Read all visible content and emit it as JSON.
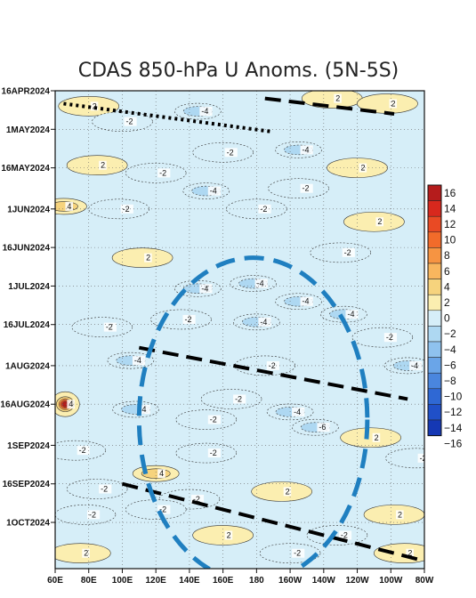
{
  "chart_data": {
    "type": "heatmap",
    "title": "CDAS 850-hPa U Anoms. (5N-5S)",
    "x_ticks": [
      "60E",
      "80E",
      "100E",
      "120E",
      "140E",
      "160E",
      "180",
      "160W",
      "140W",
      "120W",
      "100W",
      "80W"
    ],
    "x_range_lon": [
      60,
      280
    ],
    "y_ticks": [
      "16APR2024",
      "1MAY2024",
      "16MAY2024",
      "1JUN2024",
      "16JUN2024",
      "1JUL2024",
      "16JUL2024",
      "1AUG2024",
      "16AUG2024",
      "1SEP2024",
      "16SEP2024",
      "1OCT2024"
    ],
    "y_range": [
      "2024-04-16",
      "2024-10-19"
    ],
    "colorbar_levels": [
      16,
      14,
      12,
      10,
      8,
      6,
      4,
      2,
      0,
      -2,
      -4,
      -6,
      -8,
      -10,
      -12,
      -14,
      -16
    ],
    "colorbar_colors": [
      "#b51c1c",
      "#d8281d",
      "#e94a24",
      "#f26b2a",
      "#f69442",
      "#f8b65e",
      "#f6d37d",
      "#fbeeb0",
      "#ffffff",
      "#d6eef8",
      "#aed8f2",
      "#8fc2ee",
      "#6aa5e8",
      "#4a86de",
      "#2f68d4",
      "#2050c8",
      "#1538b4"
    ],
    "anomaly_features": [
      {
        "lon": 80,
        "date": "2024-04-22",
        "value": 2
      },
      {
        "lon": 100,
        "date": "2024-04-28",
        "value": -2
      },
      {
        "lon": 145,
        "date": "2024-04-24",
        "value": -4
      },
      {
        "lon": 225,
        "date": "2024-04-19",
        "value": 2
      },
      {
        "lon": 258,
        "date": "2024-04-21",
        "value": 2
      },
      {
        "lon": 205,
        "date": "2024-05-09",
        "value": -4
      },
      {
        "lon": 160,
        "date": "2024-05-10",
        "value": -2
      },
      {
        "lon": 85,
        "date": "2024-05-15",
        "value": 2
      },
      {
        "lon": 240,
        "date": "2024-05-16",
        "value": 2
      },
      {
        "lon": 120,
        "date": "2024-05-18",
        "value": -2
      },
      {
        "lon": 150,
        "date": "2024-05-25",
        "value": -4
      },
      {
        "lon": 205,
        "date": "2024-05-24",
        "value": -2
      },
      {
        "lon": 65,
        "date": "2024-05-31",
        "value": 4
      },
      {
        "lon": 98,
        "date": "2024-06-01",
        "value": -2
      },
      {
        "lon": 180,
        "date": "2024-06-01",
        "value": -2
      },
      {
        "lon": 250,
        "date": "2024-06-06",
        "value": 2
      },
      {
        "lon": 112,
        "date": "2024-06-20",
        "value": 2
      },
      {
        "lon": 230,
        "date": "2024-06-18",
        "value": -2
      },
      {
        "lon": 145,
        "date": "2024-07-02",
        "value": -4
      },
      {
        "lon": 178,
        "date": "2024-06-30",
        "value": -4
      },
      {
        "lon": 205,
        "date": "2024-07-07",
        "value": -4
      },
      {
        "lon": 232,
        "date": "2024-07-12",
        "value": -4
      },
      {
        "lon": 135,
        "date": "2024-07-14",
        "value": -2
      },
      {
        "lon": 180,
        "date": "2024-07-15",
        "value": -4
      },
      {
        "lon": 88,
        "date": "2024-07-17",
        "value": -2
      },
      {
        "lon": 255,
        "date": "2024-07-21",
        "value": -2
      },
      {
        "lon": 105,
        "date": "2024-07-30",
        "value": -4
      },
      {
        "lon": 185,
        "date": "2024-08-01",
        "value": -2
      },
      {
        "lon": 270,
        "date": "2024-08-01",
        "value": -4
      },
      {
        "lon": 66,
        "date": "2024-08-16",
        "value": 16
      },
      {
        "lon": 108,
        "date": "2024-08-18",
        "value": -4
      },
      {
        "lon": 165,
        "date": "2024-08-14",
        "value": -2
      },
      {
        "lon": 200,
        "date": "2024-08-19",
        "value": -4
      },
      {
        "lon": 215,
        "date": "2024-08-25",
        "value": -6
      },
      {
        "lon": 150,
        "date": "2024-08-22",
        "value": -2
      },
      {
        "lon": 248,
        "date": "2024-08-29",
        "value": 2
      },
      {
        "lon": 72,
        "date": "2024-09-03",
        "value": -2
      },
      {
        "lon": 150,
        "date": "2024-09-04",
        "value": -2
      },
      {
        "lon": 275,
        "date": "2024-09-06",
        "value": -2
      },
      {
        "lon": 120,
        "date": "2024-09-12",
        "value": 4
      },
      {
        "lon": 85,
        "date": "2024-09-18",
        "value": -2
      },
      {
        "lon": 195,
        "date": "2024-09-19",
        "value": 2
      },
      {
        "lon": 140,
        "date": "2024-09-22",
        "value": -2
      },
      {
        "lon": 78,
        "date": "2024-09-28",
        "value": -2
      },
      {
        "lon": 120,
        "date": "2024-09-26",
        "value": -2
      },
      {
        "lon": 262,
        "date": "2024-09-28",
        "value": 2
      },
      {
        "lon": 160,
        "date": "2024-10-06",
        "value": 2
      },
      {
        "lon": 228,
        "date": "2024-10-06",
        "value": -2
      },
      {
        "lon": 75,
        "date": "2024-10-13",
        "value": 2
      },
      {
        "lon": 200,
        "date": "2024-10-13",
        "value": -2
      },
      {
        "lon": 268,
        "date": "2024-10-13",
        "value": 2
      }
    ],
    "annotations": [
      {
        "style": "dotted",
        "points": [
          [
            65,
            "2024-04-21"
          ],
          [
            190,
            "2024-05-02"
          ]
        ]
      },
      {
        "style": "dashed",
        "points": [
          [
            185,
            "2024-04-19"
          ],
          [
            262,
            "2024-04-25"
          ]
        ]
      },
      {
        "style": "dashed",
        "points": [
          [
            110,
            "2024-07-25"
          ],
          [
            270,
            "2024-08-14"
          ]
        ]
      },
      {
        "style": "dashed",
        "points": [
          [
            100,
            "2024-09-16"
          ],
          [
            280,
            "2024-10-16"
          ]
        ]
      },
      {
        "style": "ellipse",
        "center": [
          178,
          "2024-08-22"
        ],
        "radii_lon": [
          68,
          63
        ]
      }
    ],
    "contour_labels_shown": [
      "0",
      "2",
      "-2",
      "4",
      "-4",
      "-6"
    ]
  }
}
